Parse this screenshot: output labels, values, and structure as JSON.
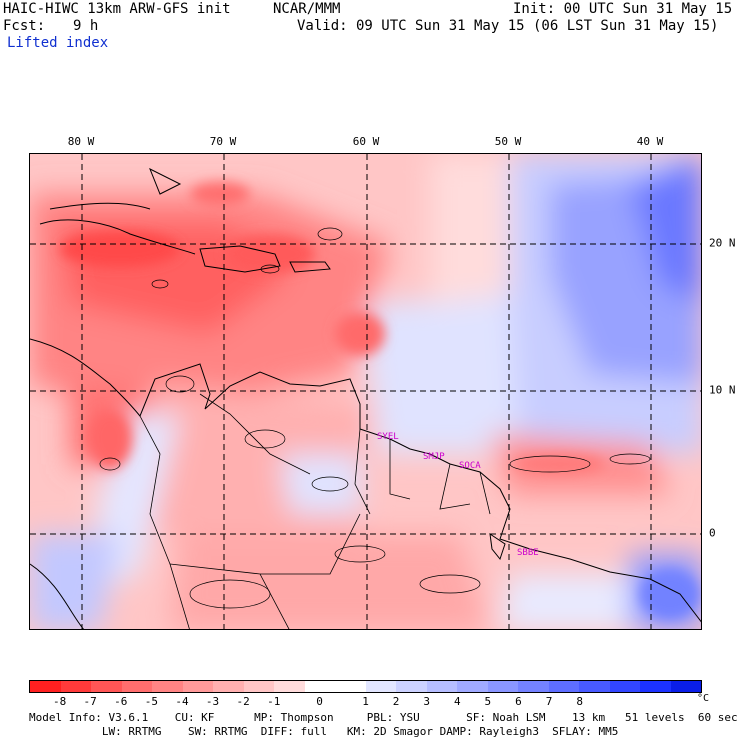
{
  "header": {
    "model": "HAIC-HIWC 13km ARW-GFS init",
    "org": "NCAR/MMM",
    "init": "Init: 00 UTC Sun 31 May 15",
    "fcst_label": "Fcst:",
    "fcst_value": "9 h",
    "valid": "Valid: 09 UTC Sun 31 May 15 (06 LST Sun 31 May 15)",
    "field": "Lifted index"
  },
  "map": {
    "lon_labels": [
      "80 W",
      "70 W",
      "60 W",
      "50 W",
      "40 W"
    ],
    "lat_labels": [
      "20 N",
      "10 N",
      "0"
    ],
    "sites": [
      "SYEL",
      "SMJP",
      "SOCA",
      "SBBE"
    ]
  },
  "colorbar": {
    "unit": "°C",
    "ticks": [
      "-8",
      "-7",
      "-6",
      "-5",
      "-4",
      "-3",
      "-2",
      "-1",
      "0",
      "1",
      "2",
      "3",
      "4",
      "5",
      "6",
      "7",
      "8"
    ],
    "colors": [
      "#ff2020",
      "#ff3a3a",
      "#ff5656",
      "#ff6e6e",
      "#ff8484",
      "#ff9a9a",
      "#ffb0b0",
      "#ffc6c6",
      "#ffdcdc",
      "#ffffff",
      "#ffffff",
      "#e2e6ff",
      "#ccd2ff",
      "#b6beff",
      "#a0aaff",
      "#8a96ff",
      "#7482ff",
      "#5e6eff",
      "#485aff",
      "#3246ff",
      "#1c32ff",
      "#0a1ee8"
    ]
  },
  "footer": {
    "line1": "Model Info: V3.6.1    CU: KF      MP: Thompson     PBL: YSU       SF: Noah LSM    13 km   51 levels  60 sec",
    "line2": "           LW: RRTMG    SW: RRTMG  DIFF: full   KM: 2D Smagor DAMP: Rayleigh3  SFLAY: MM5"
  }
}
